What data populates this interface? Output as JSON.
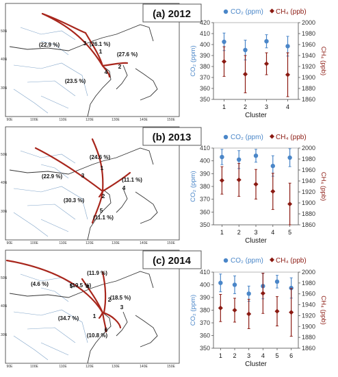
{
  "panels": [
    {
      "title": "(a) 2012",
      "map": {
        "lat_labels": [
          "50N",
          "40N",
          "30N"
        ],
        "lon_labels": [
          "90E",
          "100E",
          "110E",
          "120E",
          "130E",
          "140E",
          "150E"
        ],
        "clusters": [
          {
            "number": "1",
            "percent": "(26.1 %)"
          },
          {
            "number": "2",
            "percent": "(27.6 %)"
          },
          {
            "number": "3",
            "percent": "(22.9 %)"
          },
          {
            "number": "4",
            "percent": "(23.5 %)"
          }
        ]
      }
    },
    {
      "title": "(b) 2013",
      "map": {
        "lat_labels": [
          "50N",
          "40N",
          "30N"
        ],
        "lon_labels": [
          "90E",
          "100E",
          "110E",
          "120E",
          "130E",
          "140E",
          "150E"
        ],
        "clusters": [
          {
            "number": "1",
            "percent": "(24.6 %)"
          },
          {
            "number": "2",
            "percent": "(30.3 %)"
          },
          {
            "number": "3",
            "percent": "(22.9 %)"
          },
          {
            "number": "4",
            "percent": "(11.1 %)"
          },
          {
            "number": "5",
            "percent": "(11.1 %)"
          }
        ]
      }
    },
    {
      "title": "(c) 2014",
      "map": {
        "lat_labels": [
          "50N",
          "40N",
          "30N"
        ],
        "lon_labels": [
          "90E",
          "100E",
          "110E",
          "120E",
          "130E",
          "140E",
          "150E"
        ],
        "clusters": [
          {
            "number": "1",
            "percent": "(34.7 %)"
          },
          {
            "number": "2",
            "percent": "(11.9 %)"
          },
          {
            "number": "3",
            "percent": "(18.5 %)"
          },
          {
            "number": "4",
            "percent": "(19.5 %)"
          },
          {
            "number": "5",
            "percent": "(4.6 %)"
          },
          {
            "number": "6",
            "percent": "(10.8 %)"
          }
        ]
      }
    }
  ],
  "chart_data": [
    {
      "type": "scatter",
      "panel": "(a) 2012",
      "xlabel": "Cluster",
      "categories": [
        "1",
        "2",
        "3",
        "4"
      ],
      "ylabel_left": "CO2 (ppm)",
      "ylabel_right": "CH4 (ppb)",
      "ylim_left": [
        350,
        420
      ],
      "ylim_right": [
        1860,
        2000
      ],
      "yticks_left": [
        "350",
        "360",
        "370",
        "380",
        "390",
        "400",
        "410",
        "420"
      ],
      "yticks_right": [
        "1860",
        "1880",
        "1900",
        "1920",
        "1940",
        "1960",
        "1980",
        "2000"
      ],
      "legend": {
        "co2": "CO₂ (ppm)",
        "ch4": "CH₄ (ppb)",
        "position": "top"
      },
      "colors": {
        "co2": "#4a86c8",
        "ch4": "#8b1a12"
      },
      "series": [
        {
          "name": "CO₂ (ppm)",
          "axis": "left",
          "values": [
            402.5,
            395,
            403,
            398.5
          ],
          "errors": [
            8,
            9,
            6,
            9
          ]
        },
        {
          "name": "CH₄ (ppb)",
          "axis": "right",
          "values": [
            1929,
            1906,
            1925,
            1905
          ],
          "errors": [
            27,
            34,
            20,
            40
          ]
        }
      ]
    },
    {
      "type": "scatter",
      "panel": "(b) 2013",
      "xlabel": "Cluster",
      "categories": [
        "1",
        "2",
        "3",
        "4",
        "5"
      ],
      "ylabel_left": "CO2 (ppm)",
      "ylabel_right": "CH4 (ppb)",
      "ylim_left": [
        350,
        410
      ],
      "ylim_right": [
        1860,
        2000
      ],
      "yticks_left": [
        "350",
        "360",
        "370",
        "380",
        "390",
        "400",
        "410"
      ],
      "yticks_right": [
        "1860",
        "1880",
        "1900",
        "1920",
        "1940",
        "1960",
        "1980",
        "2000"
      ],
      "legend": {
        "co2": "CO₂ (ppm)",
        "ch4": "CH₄ (ppb)",
        "position": "top"
      },
      "colors": {
        "co2": "#4a86c8",
        "ch4": "#8b1a12"
      },
      "series": [
        {
          "name": "CO₂ (ppm)",
          "axis": "left",
          "values": [
            403,
            401,
            404,
            396,
            402.5
          ],
          "errors": [
            6,
            7,
            5,
            8,
            7
          ]
        },
        {
          "name": "CH₄ (ppb)",
          "axis": "right",
          "values": [
            1941,
            1942,
            1934,
            1921,
            1898
          ],
          "errors": [
            25,
            30,
            27,
            33,
            38
          ]
        }
      ]
    },
    {
      "type": "scatter",
      "panel": "(c) 2014",
      "xlabel": "Cluster",
      "categories": [
        "1",
        "2",
        "3",
        "4",
        "5",
        "6"
      ],
      "ylabel_left": "CO2 (ppm)",
      "ylabel_right": "CH4 (ppb)",
      "ylim_left": [
        350,
        410
      ],
      "ylim_right": [
        1860,
        2000
      ],
      "yticks_left": [
        "350",
        "360",
        "370",
        "380",
        "390",
        "400",
        "410"
      ],
      "yticks_right": [
        "1860",
        "1880",
        "1900",
        "1920",
        "1940",
        "1960",
        "1980",
        "2000"
      ],
      "legend": {
        "co2": "CO₂ (ppm)",
        "ch4": "CH₄ (ppb)",
        "position": "top"
      },
      "colors": {
        "co2": "#4a86c8",
        "ch4": "#8b1a12"
      },
      "series": [
        {
          "name": "CO₂ (ppm)",
          "axis": "left",
          "values": [
            401.5,
            400,
            393,
            399,
            402.5,
            397.5
          ],
          "errors": [
            7,
            7,
            6,
            10,
            5,
            8
          ]
        },
        {
          "name": "CH₄ (ppb)",
          "axis": "right",
          "values": [
            1934,
            1930,
            1923,
            1961,
            1928,
            1926
          ],
          "errors": [
            25,
            22,
            27,
            37,
            27,
            44
          ]
        }
      ]
    }
  ]
}
